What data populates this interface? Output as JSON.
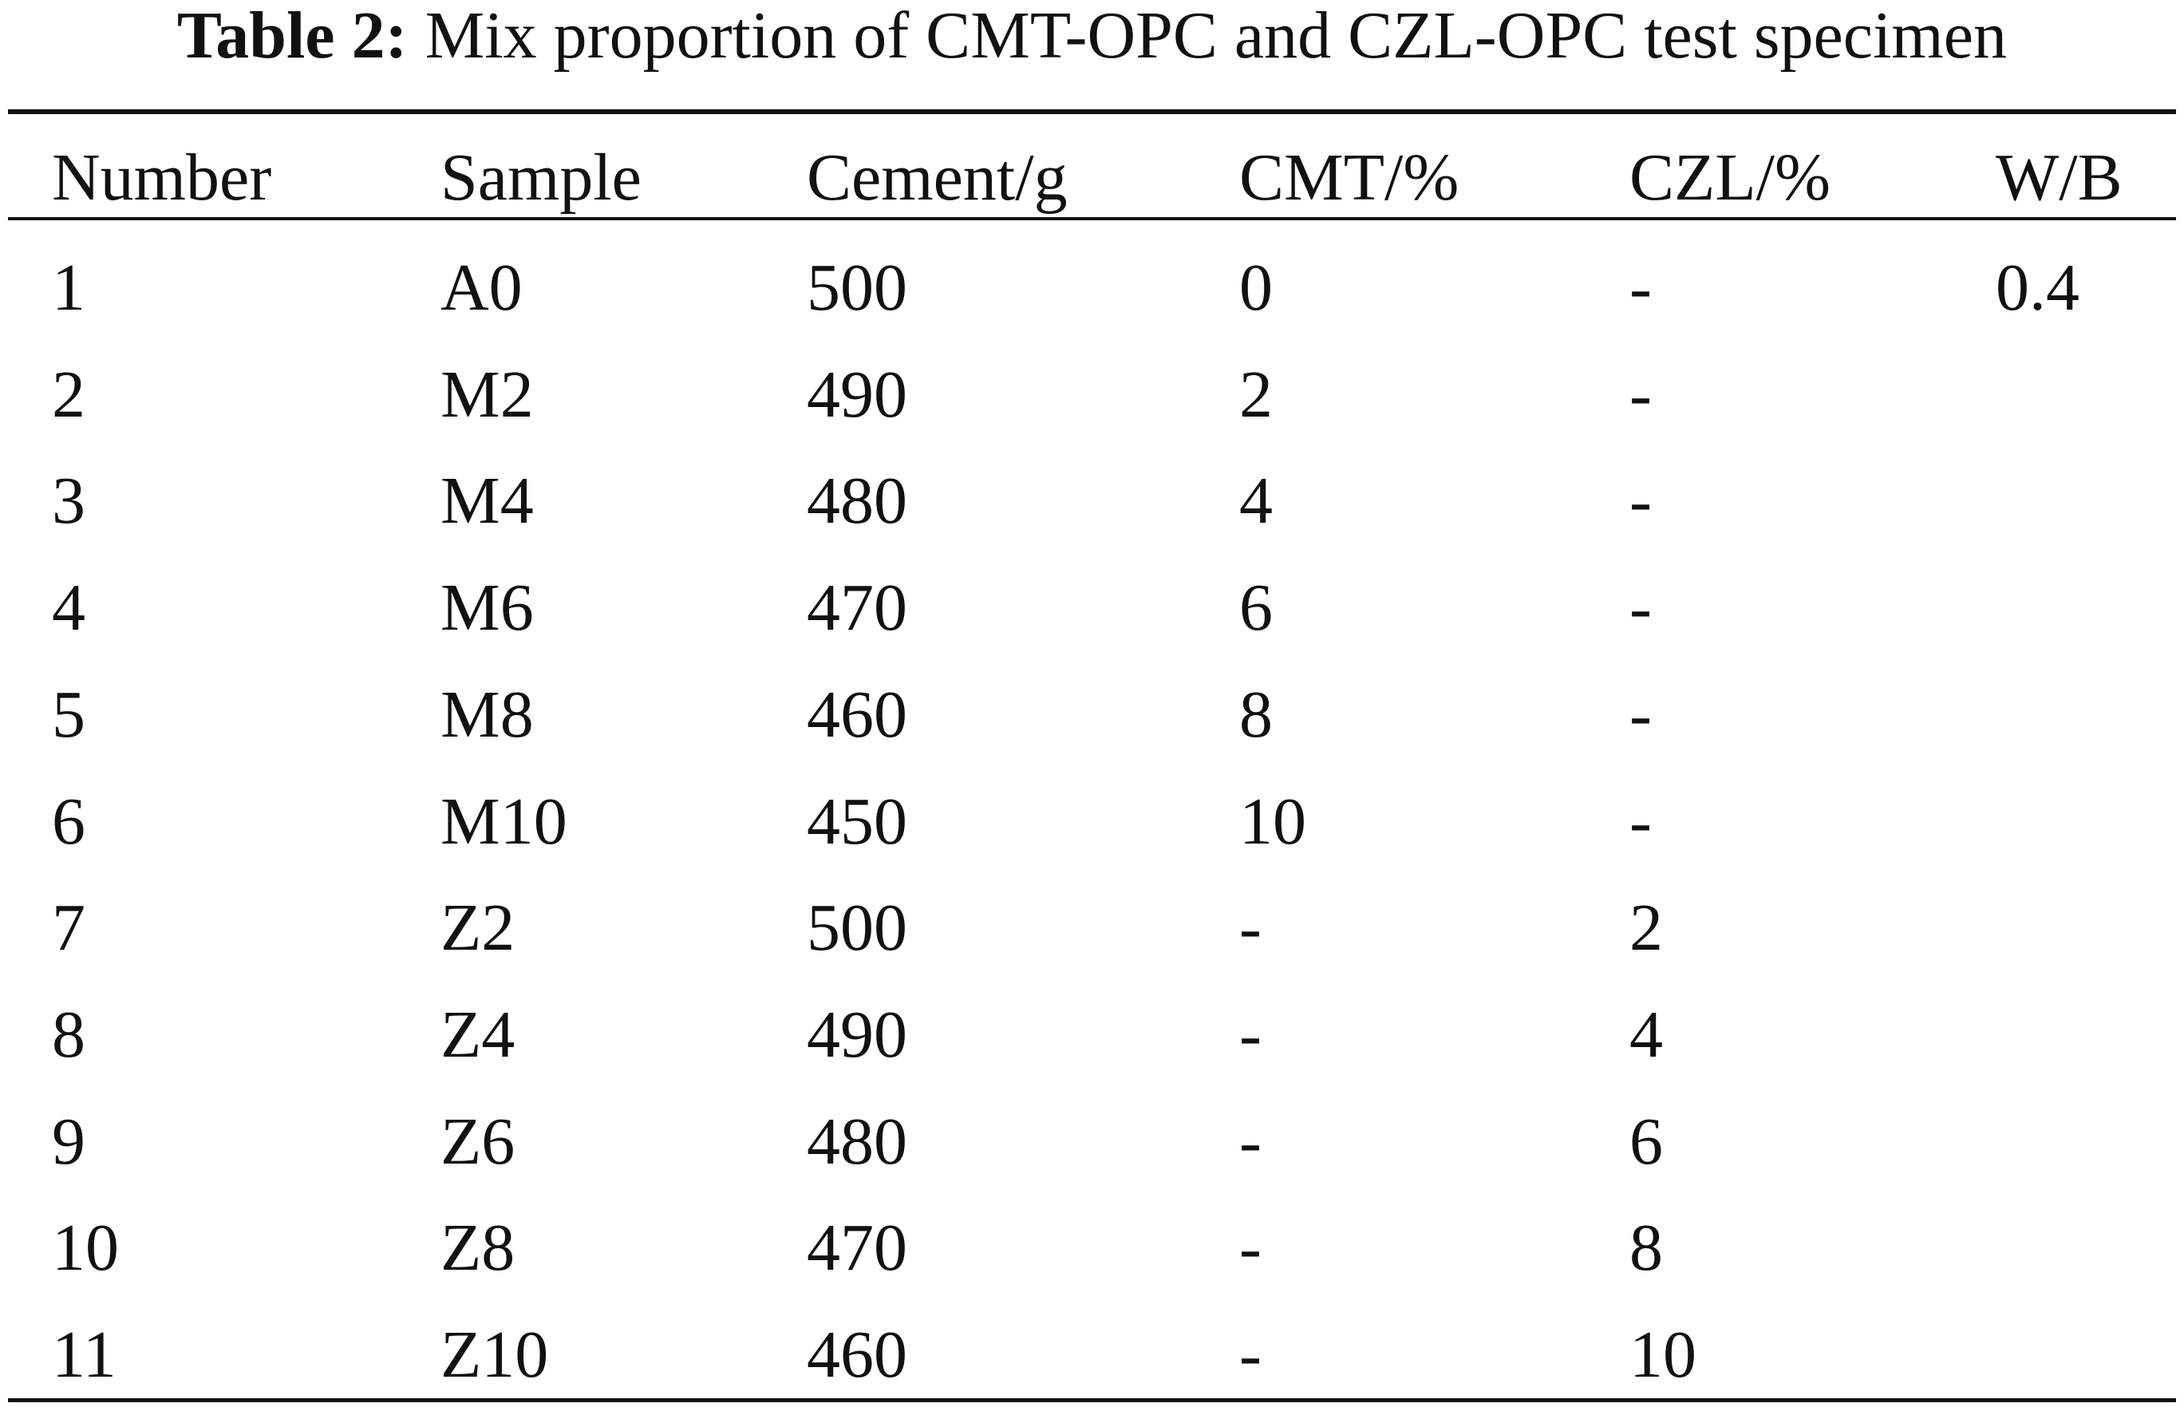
{
  "table": {
    "caption": {
      "label": "Table 2:",
      "text": "Mix proportion of CMT-OPC and CZL-OPC test specimen"
    },
    "header": [
      "Number",
      "Sample",
      "Cement/g",
      "CMT/%",
      "CZL/%",
      "W/B"
    ],
    "rows": [
      [
        "1",
        "A0",
        "500",
        "0",
        "-",
        "0.4"
      ],
      [
        "2",
        "M2",
        "490",
        "2",
        "-"
      ],
      [
        "3",
        "M4",
        "480",
        "4",
        "-"
      ],
      [
        "4",
        "M6",
        "470",
        "6",
        "-"
      ],
      [
        "5",
        "M8",
        "460",
        "8",
        "-"
      ],
      [
        "6",
        "M10",
        "450",
        "10",
        "-"
      ],
      [
        "7",
        "Z2",
        "500",
        "-",
        "2"
      ],
      [
        "8",
        "Z4",
        "490",
        "-",
        "4"
      ],
      [
        "9",
        "Z6",
        "480",
        "-",
        "6"
      ],
      [
        "10",
        "Z8",
        "470",
        "-",
        "8"
      ],
      [
        "11",
        "Z10",
        "460",
        "-",
        "10"
      ]
    ]
  }
}
